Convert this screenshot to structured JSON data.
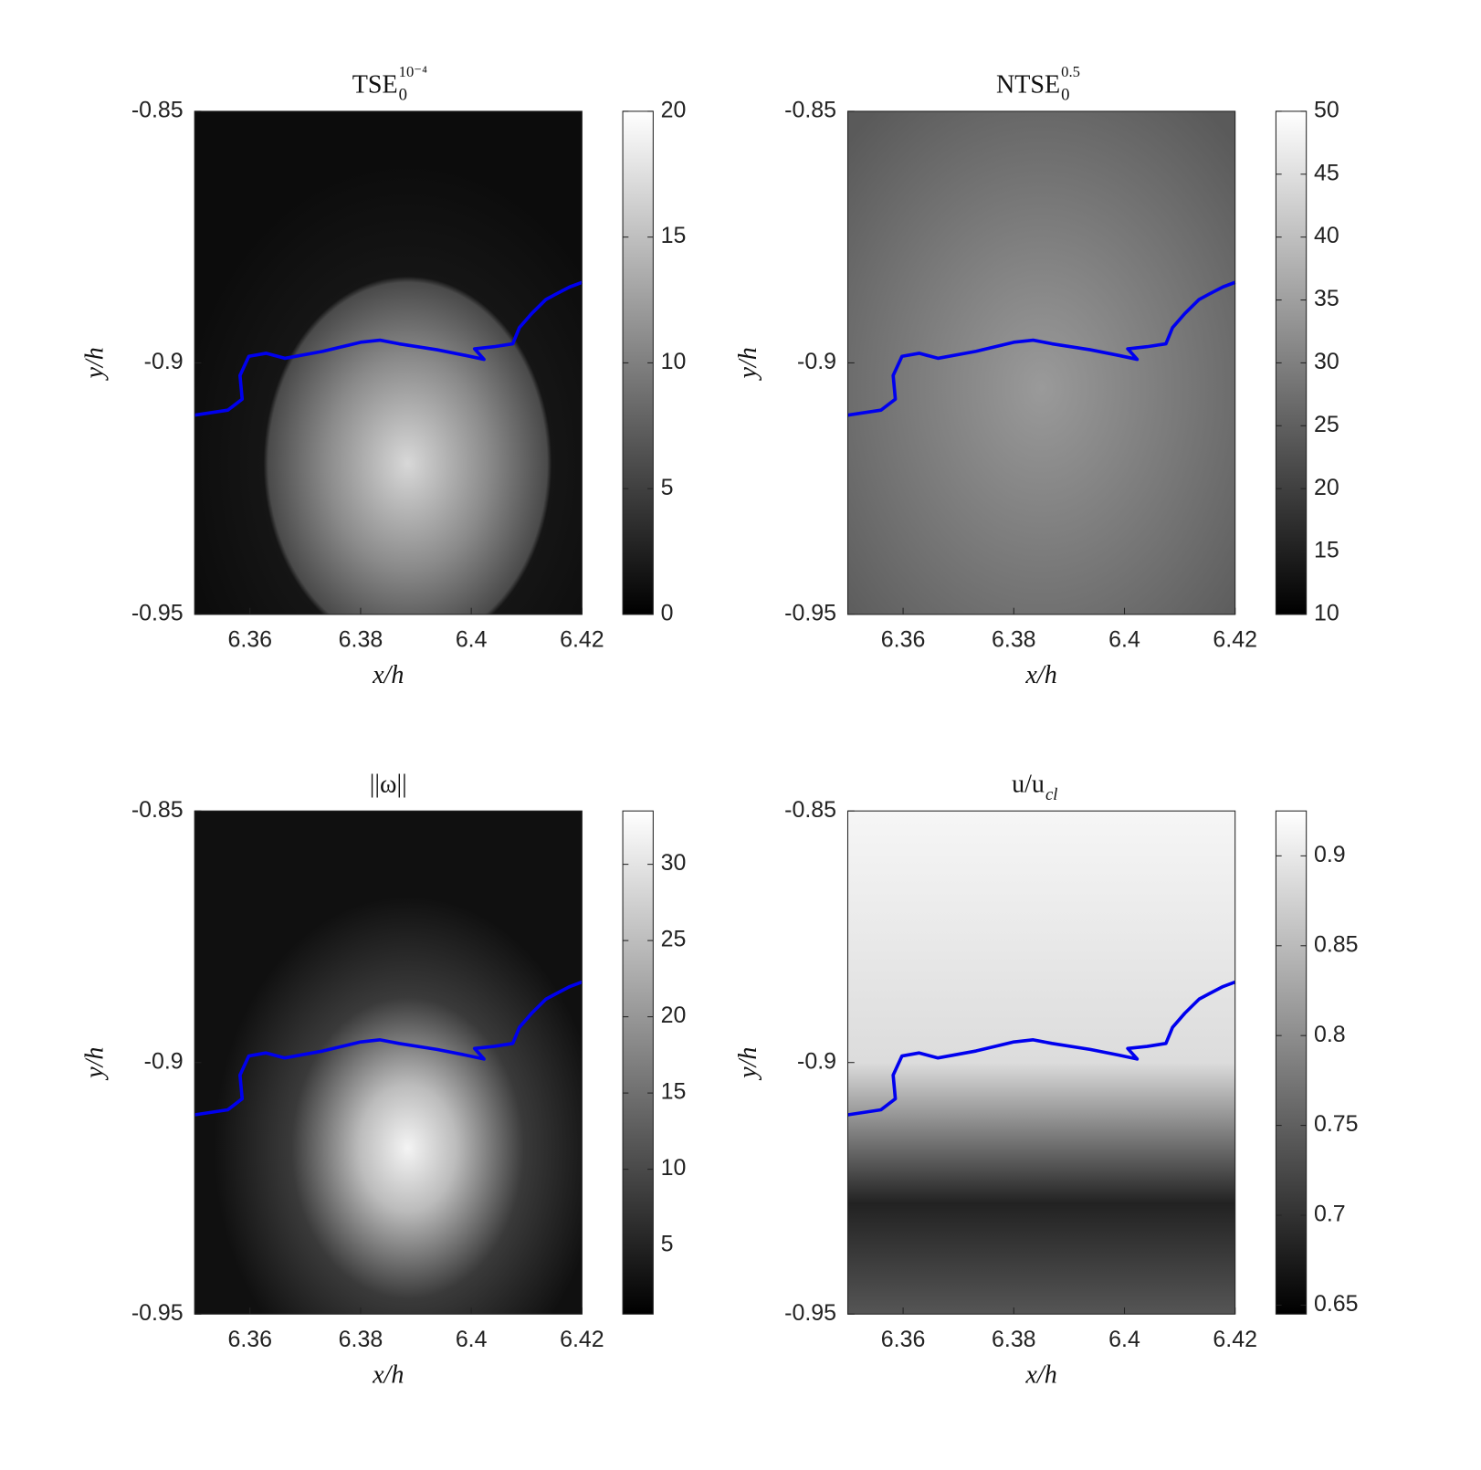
{
  "chart_data": [
    {
      "type": "heatmap",
      "title": "TSE",
      "title_sub": "0",
      "title_sup": "10⁻⁴",
      "xlabel": "x/h",
      "ylabel": "y/h",
      "xlim": [
        6.35,
        6.42
      ],
      "xticks": [
        6.36,
        6.38,
        6.4,
        6.42
      ],
      "ylim": [
        -0.95,
        -0.85
      ],
      "yticks": [
        -0.95,
        -0.9,
        -0.85
      ],
      "clim": [
        0,
        20
      ],
      "cticks": [
        0,
        5,
        10,
        15,
        20
      ],
      "line": {
        "color": "#0000ee",
        "x": [
          6.35,
          6.356,
          6.3586,
          6.3582,
          6.3598,
          6.3629,
          6.3663,
          6.3732,
          6.38,
          6.3835,
          6.3869,
          6.3938,
          6.3989,
          6.4023,
          6.4006,
          6.4041,
          6.4075,
          6.4087,
          6.4109,
          6.4135,
          6.4152,
          6.4178,
          6.42
        ],
        "y": [
          -0.9104,
          -0.9094,
          -0.9072,
          -0.9025,
          -0.8987,
          -0.8981,
          -0.8991,
          -0.8977,
          -0.8959,
          -0.8955,
          -0.8962,
          -0.8974,
          -0.8985,
          -0.8993,
          -0.8972,
          -0.8968,
          -0.8962,
          -0.893,
          -0.8902,
          -0.8874,
          -0.8864,
          -0.8849,
          -0.884
        ]
      }
    },
    {
      "type": "heatmap",
      "title": "NTSE",
      "title_sub": "0",
      "title_sup": "0.5",
      "xlabel": "x/h",
      "ylabel": "y/h",
      "xlim": [
        6.35,
        6.42
      ],
      "xticks": [
        6.36,
        6.38,
        6.4,
        6.42
      ],
      "ylim": [
        -0.95,
        -0.85
      ],
      "yticks": [
        -0.95,
        -0.9,
        -0.85
      ],
      "clim": [
        10,
        50
      ],
      "cticks": [
        10,
        15,
        20,
        25,
        30,
        35,
        40,
        45,
        50
      ],
      "line": {
        "color": "#0000ee",
        "x": [
          6.35,
          6.356,
          6.3586,
          6.3582,
          6.3598,
          6.3629,
          6.3663,
          6.3732,
          6.38,
          6.3835,
          6.3869,
          6.3938,
          6.3989,
          6.4023,
          6.4006,
          6.4041,
          6.4075,
          6.4087,
          6.4109,
          6.4135,
          6.4152,
          6.4178,
          6.42
        ],
        "y": [
          -0.9104,
          -0.9094,
          -0.9072,
          -0.9025,
          -0.8987,
          -0.8981,
          -0.8991,
          -0.8977,
          -0.8959,
          -0.8955,
          -0.8962,
          -0.8974,
          -0.8985,
          -0.8993,
          -0.8972,
          -0.8968,
          -0.8962,
          -0.893,
          -0.8902,
          -0.8874,
          -0.8864,
          -0.8849,
          -0.884
        ]
      }
    },
    {
      "type": "heatmap",
      "title": "||ω||",
      "xlabel": "x/h",
      "ylabel": "y/h",
      "xlim": [
        6.35,
        6.42
      ],
      "xticks": [
        6.36,
        6.38,
        6.4,
        6.42
      ],
      "ylim": [
        -0.95,
        -0.85
      ],
      "yticks": [
        -0.95,
        -0.9,
        -0.85
      ],
      "clim": [
        0.5,
        33.5
      ],
      "cticks": [
        5,
        10,
        15,
        20,
        25,
        30
      ],
      "line": {
        "color": "#0000ee",
        "x": [
          6.35,
          6.356,
          6.3586,
          6.3582,
          6.3598,
          6.3629,
          6.3663,
          6.3732,
          6.38,
          6.3835,
          6.3869,
          6.3938,
          6.3989,
          6.4023,
          6.4006,
          6.4041,
          6.4075,
          6.4087,
          6.4109,
          6.4135,
          6.4152,
          6.4178,
          6.42
        ],
        "y": [
          -0.9104,
          -0.9094,
          -0.9072,
          -0.9025,
          -0.8987,
          -0.8981,
          -0.8991,
          -0.8977,
          -0.8959,
          -0.8955,
          -0.8962,
          -0.8974,
          -0.8985,
          -0.8993,
          -0.8972,
          -0.8968,
          -0.8962,
          -0.893,
          -0.8902,
          -0.8874,
          -0.8864,
          -0.8849,
          -0.884
        ]
      }
    },
    {
      "type": "heatmap",
      "title": "u/u",
      "title_sub": "cl",
      "xlabel": "x/h",
      "ylabel": "y/h",
      "xlim": [
        6.35,
        6.42
      ],
      "xticks": [
        6.36,
        6.38,
        6.4,
        6.42
      ],
      "ylim": [
        -0.95,
        -0.85
      ],
      "yticks": [
        -0.95,
        -0.9,
        -0.85
      ],
      "clim": [
        0.645,
        0.925
      ],
      "cticks": [
        0.65,
        0.7,
        0.75,
        0.8,
        0.85,
        0.9
      ],
      "line": {
        "color": "#0000ee",
        "x": [
          6.35,
          6.356,
          6.3586,
          6.3582,
          6.3598,
          6.3629,
          6.3663,
          6.3732,
          6.38,
          6.3835,
          6.3869,
          6.3938,
          6.3989,
          6.4023,
          6.4006,
          6.4041,
          6.4075,
          6.4087,
          6.4109,
          6.4135,
          6.4152,
          6.4178,
          6.42
        ],
        "y": [
          -0.9104,
          -0.9094,
          -0.9072,
          -0.9025,
          -0.8987,
          -0.8981,
          -0.8991,
          -0.8977,
          -0.8959,
          -0.8955,
          -0.8962,
          -0.8974,
          -0.8985,
          -0.8993,
          -0.8972,
          -0.8968,
          -0.8962,
          -0.893,
          -0.8902,
          -0.8874,
          -0.8864,
          -0.8849,
          -0.884
        ]
      }
    }
  ]
}
